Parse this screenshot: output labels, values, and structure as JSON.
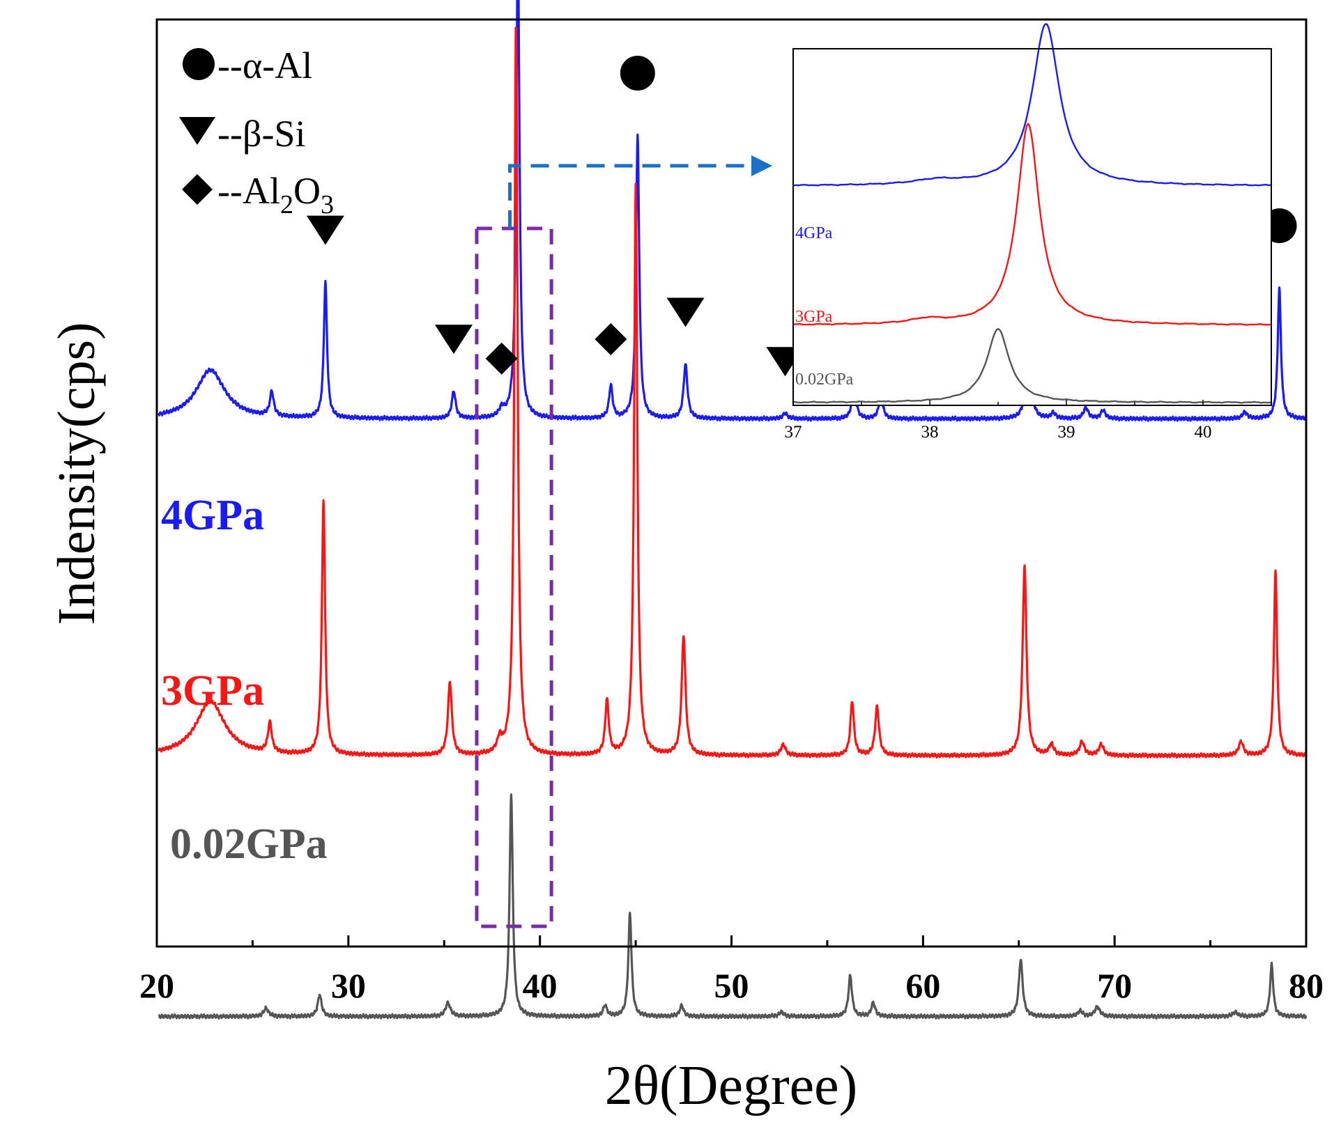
{
  "chart_data": [
    {
      "type": "line",
      "title": "",
      "xlabel": "2θ(Degree)",
      "ylabel": "Indensity(cps)",
      "xlim": [
        20,
        80
      ],
      "xticks": [
        20,
        30,
        40,
        50,
        60,
        70,
        80
      ],
      "y_axis_ticks": false,
      "grid": false,
      "legend_position": "top-left",
      "legend": [
        {
          "marker": "circle",
          "text": "--α-Al"
        },
        {
          "marker": "triangle-down",
          "text": "--β-Si"
        },
        {
          "marker": "diamond",
          "text": "--Al",
          "sub1": "2",
          "mid": "O",
          "sub2": "3"
        }
      ],
      "series": [
        {
          "name": "4GPa",
          "color": "#1a1aff",
          "baseline": 0.62,
          "peaks": [
            [
              22.8,
              0.09,
              0.9
            ],
            [
              26.0,
              0.045,
              0.12
            ],
            [
              28.8,
              0.25,
              0.1
            ],
            [
              35.5,
              0.05,
              0.12
            ],
            [
              38.0,
              0.015,
              0.15
            ],
            [
              38.85,
              0.88,
              0.1
            ],
            [
              43.7,
              0.06,
              0.11
            ],
            [
              45.1,
              0.52,
              0.1
            ],
            [
              47.6,
              0.1,
              0.12
            ],
            [
              52.8,
              0.01,
              0.15
            ],
            [
              56.4,
              0.075,
              0.11
            ],
            [
              57.8,
              0.045,
              0.12
            ],
            [
              65.5,
              0.2,
              0.12
            ],
            [
              66.8,
              0.01,
              0.15
            ],
            [
              68.5,
              0.02,
              0.15
            ],
            [
              69.4,
              0.015,
              0.15
            ],
            [
              76.8,
              0.012,
              0.15
            ],
            [
              78.6,
              0.24,
              0.1
            ]
          ]
        },
        {
          "name": "3GPa",
          "color": "#ff1414",
          "baseline": 0.0,
          "peaks": [
            [
              22.8,
              0.1,
              0.9
            ],
            [
              25.9,
              0.055,
              0.12
            ],
            [
              28.7,
              0.47,
              0.1
            ],
            [
              35.3,
              0.135,
              0.12
            ],
            [
              37.9,
              0.025,
              0.15
            ],
            [
              38.75,
              1.35,
              0.1
            ],
            [
              43.5,
              0.1,
              0.11
            ],
            [
              45.0,
              1.05,
              0.1
            ],
            [
              47.5,
              0.22,
              0.12
            ],
            [
              52.7,
              0.02,
              0.15
            ],
            [
              56.3,
              0.1,
              0.11
            ],
            [
              57.6,
              0.09,
              0.12
            ],
            [
              65.3,
              0.35,
              0.12
            ],
            [
              66.7,
              0.02,
              0.15
            ],
            [
              68.3,
              0.025,
              0.15
            ],
            [
              69.3,
              0.02,
              0.15
            ],
            [
              76.6,
              0.025,
              0.15
            ],
            [
              78.4,
              0.34,
              0.1
            ]
          ]
        },
        {
          "name": "0.02GPa",
          "color": "#555555",
          "baseline": -0.48,
          "peaks": [
            [
              25.7,
              0.015,
              0.15
            ],
            [
              28.5,
              0.04,
              0.12
            ],
            [
              35.2,
              0.025,
              0.15
            ],
            [
              38.5,
              0.41,
              0.1
            ],
            [
              43.4,
              0.02,
              0.12
            ],
            [
              44.7,
              0.19,
              0.1
            ],
            [
              47.4,
              0.02,
              0.12
            ],
            [
              52.6,
              0.008,
              0.15
            ],
            [
              56.2,
              0.075,
              0.11
            ],
            [
              57.4,
              0.025,
              0.12
            ],
            [
              65.1,
              0.105,
              0.12
            ],
            [
              68.2,
              0.01,
              0.15
            ],
            [
              69.1,
              0.018,
              0.15
            ],
            [
              76.3,
              0.008,
              0.15
            ],
            [
              78.2,
              0.095,
              0.1
            ]
          ]
        }
      ],
      "markers": [
        {
          "phase": "α-Al",
          "shape": "circle",
          "x": 38.85
        },
        {
          "phase": "α-Al",
          "shape": "circle",
          "x": 45.1
        },
        {
          "phase": "α-Al",
          "shape": "circle",
          "x": 65.5
        },
        {
          "phase": "α-Al",
          "shape": "circle",
          "x": 78.6
        },
        {
          "phase": "β-Si",
          "shape": "triangle-down",
          "x": 28.8
        },
        {
          "phase": "β-Si",
          "shape": "triangle-down",
          "x": 35.5
        },
        {
          "phase": "β-Si",
          "shape": "triangle-down",
          "x": 47.6
        },
        {
          "phase": "β-Si",
          "shape": "triangle-down",
          "x": 52.8
        },
        {
          "phase": "β-Si",
          "shape": "triangle-down",
          "x": 57.8
        },
        {
          "phase": "Al2O3",
          "shape": "diamond",
          "x": 38.0
        },
        {
          "phase": "Al2O3",
          "shape": "diamond",
          "x": 43.7
        },
        {
          "phase": "Al2O3",
          "shape": "diamond",
          "x": 56.4
        }
      ],
      "zoom_box": {
        "x_range": [
          36.7,
          40.6
        ],
        "color": "#7b2aa8"
      },
      "arrow_color": "#1a6fc9"
    },
    {
      "type": "line",
      "title": "",
      "xlabel": "",
      "ylabel": "",
      "xlim": [
        37,
        40.5
      ],
      "xticks": [
        37,
        38,
        39,
        40
      ],
      "grid": false,
      "series": [
        {
          "name": "4GPa",
          "color": "#1a1aff",
          "baseline": 0.56,
          "peaks": [
            [
              38.85,
              0.42,
              0.12
            ],
            [
              38.05,
              0.012,
              0.2
            ]
          ]
        },
        {
          "name": "3GPa",
          "color": "#ff1414",
          "baseline": 0.2,
          "peaks": [
            [
              38.72,
              0.52,
              0.1
            ],
            [
              37.98,
              0.012,
              0.15
            ]
          ]
        },
        {
          "name": "0.02GPa",
          "color": "#555555",
          "baseline": 0.0,
          "peaks": [
            [
              38.5,
              0.19,
              0.1
            ]
          ]
        }
      ]
    }
  ]
}
